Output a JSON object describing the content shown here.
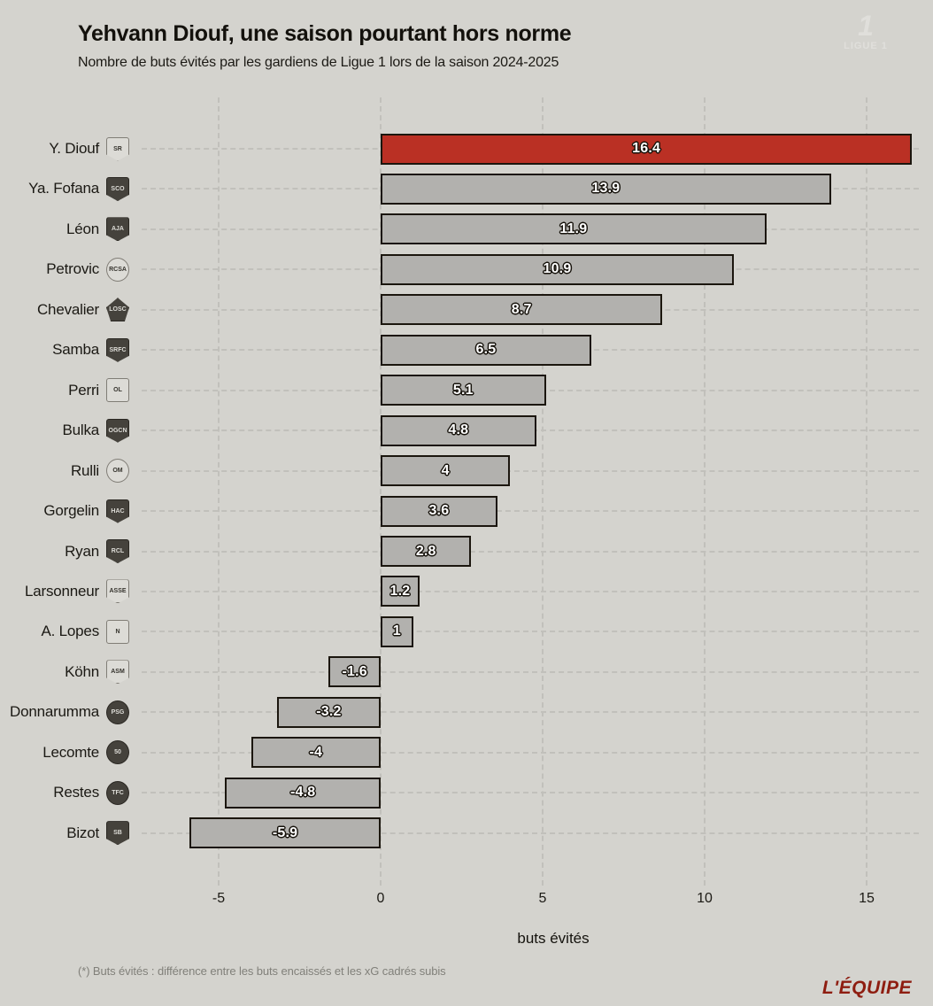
{
  "header": {
    "title": "Yehvann Diouf, une saison pourtant hors norme",
    "subtitle": "Nombre de buts évités par les gardiens de Ligue 1 lors de la saison 2024-2025"
  },
  "watermark": {
    "glyph": "1",
    "label": "LIGUE 1"
  },
  "chart_data": {
    "type": "bar",
    "orientation": "horizontal",
    "categories": [
      "Y. Diouf",
      "Ya. Fofana",
      "Léon",
      "Petrovic",
      "Chevalier",
      "Samba",
      "Perri",
      "Bulka",
      "Rulli",
      "Gorgelin",
      "Ryan",
      "Larsonneur",
      "A. Lopes",
      "Köhn",
      "Donnarumma",
      "Lecomte",
      "Restes",
      "Bizot"
    ],
    "values": [
      16.4,
      13.9,
      11.9,
      10.9,
      8.7,
      6.5,
      5.1,
      4.8,
      4,
      3.6,
      2.8,
      1.2,
      1,
      -1.6,
      -3.2,
      -4,
      -4.8,
      -5.9
    ],
    "value_labels": [
      "16.4",
      "13.9",
      "11.9",
      "10.9",
      "8.7",
      "6.5",
      "5.1",
      "4.8",
      "4",
      "3.6",
      "2.8",
      "1.2",
      "1",
      "-1.6",
      "-3.2",
      "-4",
      "-4.8",
      "-5.9"
    ],
    "badges": [
      {
        "club": "reims",
        "initials": "SR",
        "shape": "shield",
        "variant": "light"
      },
      {
        "club": "angers",
        "initials": "SCO",
        "shape": "shield",
        "variant": "dark"
      },
      {
        "club": "auxerre",
        "initials": "AJA",
        "shape": "shield",
        "variant": "dark"
      },
      {
        "club": "strasbourg",
        "initials": "RCSA",
        "shape": "circle",
        "variant": "light"
      },
      {
        "club": "lille",
        "initials": "LOSC",
        "shape": "pentagon",
        "variant": "dark"
      },
      {
        "club": "rennes",
        "initials": "SRFC",
        "shape": "shield",
        "variant": "dark"
      },
      {
        "club": "lyon",
        "initials": "OL",
        "shape": "square",
        "variant": "light"
      },
      {
        "club": "nice",
        "initials": "OGCN",
        "shape": "shield",
        "variant": "dark"
      },
      {
        "club": "marseille",
        "initials": "OM",
        "shape": "circle",
        "variant": "light"
      },
      {
        "club": "le-havre",
        "initials": "HAC",
        "shape": "shield",
        "variant": "dark"
      },
      {
        "club": "lens",
        "initials": "RCL",
        "shape": "shield",
        "variant": "dark"
      },
      {
        "club": "saint-etienne",
        "initials": "ASSE",
        "shape": "shield",
        "variant": "light"
      },
      {
        "club": "nantes",
        "initials": "N",
        "shape": "square",
        "variant": "light"
      },
      {
        "club": "monaco",
        "initials": "ASM",
        "shape": "shield",
        "variant": "light"
      },
      {
        "club": "psg",
        "initials": "PSG",
        "shape": "circle",
        "variant": "dark"
      },
      {
        "club": "montpellier",
        "initials": "50",
        "shape": "circle",
        "variant": "dark"
      },
      {
        "club": "toulouse",
        "initials": "TFC",
        "shape": "circle",
        "variant": "dark"
      },
      {
        "club": "brest",
        "initials": "SB",
        "shape": "shield",
        "variant": "dark"
      }
    ],
    "highlight_index": 0,
    "colors": {
      "highlight": "#ba3024",
      "bar": "#b2b1ae",
      "bar_border": "#1b160e",
      "background": "#d4d3ce",
      "grid": "#c1c0bb"
    },
    "xlabel": "buts évités",
    "xticks": [
      {
        "value": -5,
        "label": "-5"
      },
      {
        "value": 0,
        "label": "0"
      },
      {
        "value": 5,
        "label": "5"
      },
      {
        "value": 10,
        "label": "10"
      },
      {
        "value": 15,
        "label": "15"
      }
    ],
    "xlim": [
      -7.4,
      16.6
    ],
    "grid": "dashed"
  },
  "footer": {
    "note": "(*) Buts évités : différence entre les buts encaissés et les xG cadrés subis",
    "brand": "L'ÉQUIPE"
  }
}
